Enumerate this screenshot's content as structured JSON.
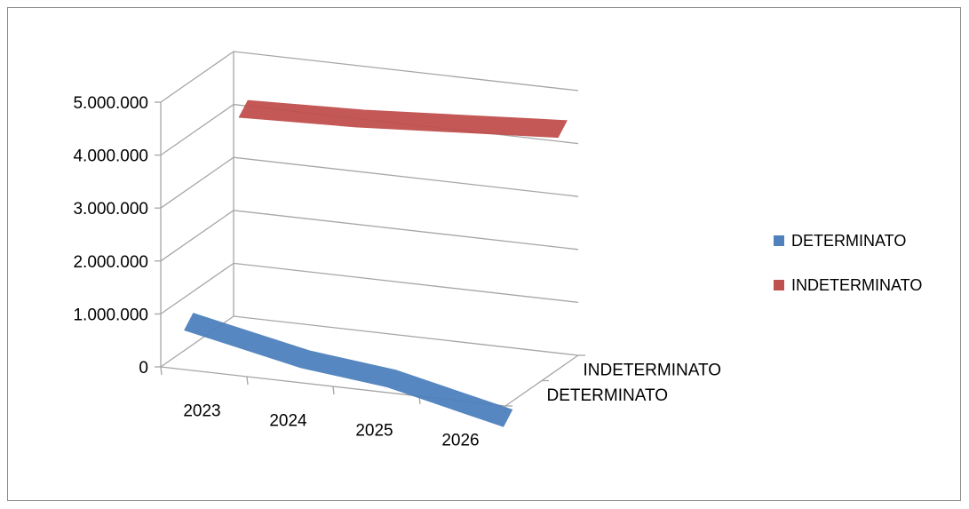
{
  "chart_data": {
    "type": "line",
    "style": "3d",
    "categories": [
      "2023",
      "2024",
      "2025",
      "2026"
    ],
    "series": [
      {
        "name": "DETERMINATO",
        "color": "#4f81bd",
        "values": [
          560000,
          220000,
          40000,
          -330000
        ]
      },
      {
        "name": "INDETERMINATO",
        "color": "#c0504d",
        "values": [
          4000000,
          4050000,
          4150000,
          4250000
        ]
      }
    ],
    "depth_labels": [
      "INDETERMINATO",
      "DETERMINATO"
    ],
    "yticks": [
      "0",
      "1.000.000",
      "2.000.000",
      "3.000.000",
      "4.000.000",
      "5.000.000"
    ],
    "ylim": [
      0,
      5000000
    ],
    "grid": true,
    "legend": "right"
  }
}
